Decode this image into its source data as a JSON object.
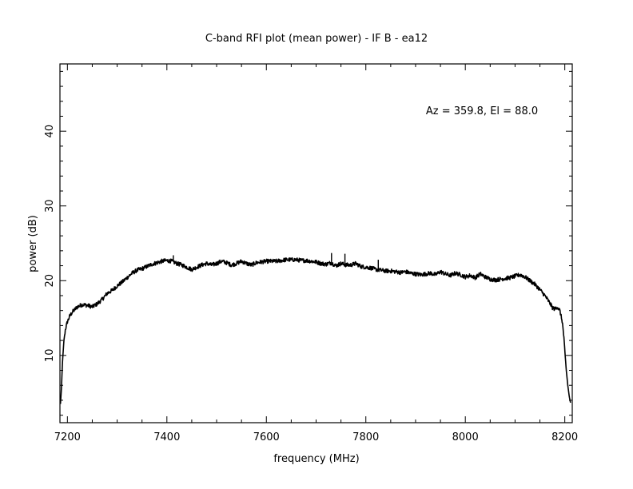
{
  "chart_data": {
    "type": "line",
    "title": "C-band RFI plot (mean power) - IF B - ea12",
    "xlabel": "frequency (MHz)",
    "ylabel": "power (dB)",
    "xlim": [
      7185,
      8215
    ],
    "ylim": [
      1,
      49
    ],
    "annotation": "Az = 359.8, El = 88.0",
    "x_ticks": [
      7200,
      7400,
      7600,
      7800,
      8000,
      8200
    ],
    "x_tick_labels": [
      "7200",
      "7400",
      "7600",
      "7800",
      "8000",
      "8200"
    ],
    "y_ticks": [
      10,
      20,
      30,
      40
    ],
    "y_tick_labels": [
      "10",
      "20",
      "30",
      "40"
    ],
    "grid": false,
    "line_color": "#000000",
    "series": [
      {
        "x": [
          7186,
          7188,
          7190,
          7193,
          7196,
          7200,
          7205,
          7210,
          7220,
          7230,
          7240,
          7250,
          7260,
          7270,
          7280,
          7290,
          7300,
          7310,
          7320,
          7330,
          7340,
          7350,
          7360,
          7370,
          7380,
          7390,
          7400,
          7410,
          7420,
          7430,
          7440,
          7450,
          7460,
          7470,
          7480,
          7490,
          7500,
          7510,
          7520,
          7530,
          7540,
          7550,
          7560,
          7570,
          7580,
          7590,
          7600,
          7610,
          7620,
          7630,
          7640,
          7650,
          7660,
          7670,
          7680,
          7690,
          7700,
          7710,
          7720,
          7730,
          7740,
          7750,
          7760,
          7770,
          7780,
          7790,
          7800,
          7810,
          7820,
          7830,
          7840,
          7850,
          7860,
          7870,
          7880,
          7890,
          7900,
          7910,
          7920,
          7930,
          7940,
          7950,
          7960,
          7970,
          7980,
          7990,
          8000,
          8010,
          8020,
          8030,
          8040,
          8050,
          8060,
          8070,
          8080,
          8090,
          8100,
          8110,
          8120,
          8130,
          8140,
          8150,
          8160,
          8170,
          8175,
          8180,
          8185,
          8190,
          8195,
          8198,
          8200,
          8203,
          8206,
          8209,
          8212
        ],
        "y": [
          3.5,
          5.5,
          9,
          12,
          13.5,
          14.5,
          15.3,
          15.8,
          16.5,
          16.8,
          16.7,
          16.5,
          16.9,
          17.5,
          18.3,
          18.7,
          19.3,
          19.8,
          20.4,
          21.0,
          21.4,
          21.6,
          21.9,
          22.2,
          22.4,
          22.6,
          22.7,
          22.6,
          22.3,
          22.1,
          21.8,
          21.5,
          21.8,
          22.1,
          22.3,
          22.1,
          22.3,
          22.6,
          22.4,
          22.1,
          22.3,
          22.6,
          22.3,
          22.1,
          22.4,
          22.5,
          22.6,
          22.6,
          22.6,
          22.7,
          22.8,
          22.8,
          22.8,
          22.7,
          22.7,
          22.6,
          22.5,
          22.3,
          22.2,
          22.4,
          22.0,
          22.3,
          22.1,
          22.1,
          22.3,
          21.9,
          21.8,
          21.7,
          21.5,
          21.4,
          21.3,
          21.3,
          21.2,
          21.1,
          21.2,
          21.0,
          20.9,
          20.8,
          20.9,
          21.0,
          20.8,
          21.2,
          20.9,
          20.7,
          21.0,
          20.8,
          20.5,
          20.7,
          20.4,
          20.9,
          20.5,
          20.2,
          20.1,
          20.2,
          20.3,
          20.4,
          20.6,
          20.8,
          20.5,
          20.0,
          19.5,
          18.8,
          18.0,
          17.0,
          16.4,
          16.2,
          16.5,
          16.0,
          14.5,
          12.5,
          10.5,
          8.0,
          6.0,
          4.5,
          3.5
        ],
        "spikes": [
          {
            "x": 7413,
            "y": 23.4
          },
          {
            "x": 7731,
            "y": 23.7
          },
          {
            "x": 7758,
            "y": 23.6
          },
          {
            "x": 7825,
            "y": 22.8
          }
        ]
      }
    ]
  }
}
